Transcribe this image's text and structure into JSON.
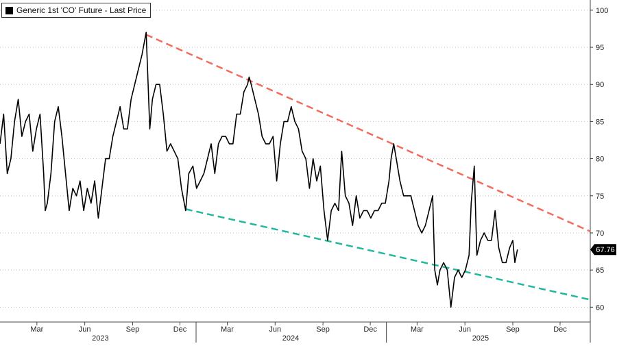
{
  "chart_data": {
    "type": "line",
    "legend": {
      "label": "Generic 1st 'CO' Future - Last Price",
      "placement": "top-left"
    },
    "last_value_label": "67.76",
    "y_axis": {
      "range": [
        58,
        101
      ],
      "ticks": [
        60,
        65,
        70,
        75,
        80,
        85,
        90,
        95,
        100
      ],
      "side": "right"
    },
    "x_axis": {
      "range": [
        "2022-12-20",
        "2026-01-28"
      ],
      "month_ticks": [
        {
          "label": "Mar",
          "date": "2023-03-01"
        },
        {
          "label": "Jun",
          "date": "2023-06-01"
        },
        {
          "label": "Sep",
          "date": "2023-09-01"
        },
        {
          "label": "Dec",
          "date": "2023-12-01"
        },
        {
          "label": "Mar",
          "date": "2024-03-01"
        },
        {
          "label": "Jun",
          "date": "2024-06-01"
        },
        {
          "label": "Sep",
          "date": "2024-09-01"
        },
        {
          "label": "Dec",
          "date": "2024-12-01"
        },
        {
          "label": "Mar",
          "date": "2025-03-01"
        },
        {
          "label": "Jun",
          "date": "2025-06-01"
        },
        {
          "label": "Sep",
          "date": "2025-09-01"
        },
        {
          "label": "Dec",
          "date": "2025-12-01"
        }
      ],
      "year_labels": [
        {
          "label": "2023",
          "date": "2023-07-01"
        },
        {
          "label": "2024",
          "date": "2024-07-01"
        },
        {
          "label": "2025",
          "date": "2025-07-01"
        }
      ],
      "year_separators": [
        "2024-01-01",
        "2025-01-01"
      ]
    },
    "grid": "horizontal dotted",
    "series": [
      {
        "color": "#000000",
        "points": [
          [
            "2022-12-20",
            82
          ],
          [
            "2022-12-27",
            86
          ],
          [
            "2023-01-03",
            78
          ],
          [
            "2023-01-10",
            80
          ],
          [
            "2023-01-17",
            85
          ],
          [
            "2023-01-24",
            88
          ],
          [
            "2023-01-31",
            83
          ],
          [
            "2023-02-07",
            85
          ],
          [
            "2023-02-14",
            86
          ],
          [
            "2023-02-21",
            81
          ],
          [
            "2023-02-28",
            84
          ],
          [
            "2023-03-07",
            86
          ],
          [
            "2023-03-14",
            78
          ],
          [
            "2023-03-17",
            73
          ],
          [
            "2023-03-21",
            74
          ],
          [
            "2023-03-28",
            78
          ],
          [
            "2023-04-04",
            85
          ],
          [
            "2023-04-11",
            87
          ],
          [
            "2023-04-18",
            83
          ],
          [
            "2023-04-25",
            78
          ],
          [
            "2023-05-02",
            73
          ],
          [
            "2023-05-09",
            76
          ],
          [
            "2023-05-16",
            75
          ],
          [
            "2023-05-23",
            77
          ],
          [
            "2023-05-30",
            73
          ],
          [
            "2023-06-06",
            76
          ],
          [
            "2023-06-13",
            74
          ],
          [
            "2023-06-20",
            77
          ],
          [
            "2023-06-27",
            72
          ],
          [
            "2023-07-04",
            76
          ],
          [
            "2023-07-11",
            80
          ],
          [
            "2023-07-18",
            80
          ],
          [
            "2023-07-25",
            83
          ],
          [
            "2023-08-01",
            85
          ],
          [
            "2023-08-08",
            87
          ],
          [
            "2023-08-15",
            84
          ],
          [
            "2023-08-22",
            84
          ],
          [
            "2023-08-29",
            88
          ],
          [
            "2023-09-05",
            90
          ],
          [
            "2023-09-12",
            92
          ],
          [
            "2023-09-19",
            94
          ],
          [
            "2023-09-27",
            97
          ],
          [
            "2023-10-04",
            84
          ],
          [
            "2023-10-09",
            88
          ],
          [
            "2023-10-16",
            90
          ],
          [
            "2023-10-23",
            90
          ],
          [
            "2023-10-30",
            86
          ],
          [
            "2023-11-06",
            81
          ],
          [
            "2023-11-13",
            82
          ],
          [
            "2023-11-20",
            81
          ],
          [
            "2023-11-27",
            80
          ],
          [
            "2023-12-04",
            76
          ],
          [
            "2023-12-12",
            73
          ],
          [
            "2023-12-18",
            78
          ],
          [
            "2023-12-26",
            79
          ],
          [
            "2024-01-02",
            76
          ],
          [
            "2024-01-09",
            77
          ],
          [
            "2024-01-16",
            78
          ],
          [
            "2024-01-23",
            80
          ],
          [
            "2024-01-30",
            82
          ],
          [
            "2024-02-06",
            78
          ],
          [
            "2024-02-13",
            82
          ],
          [
            "2024-02-20",
            83
          ],
          [
            "2024-02-27",
            83
          ],
          [
            "2024-03-05",
            82
          ],
          [
            "2024-03-12",
            82
          ],
          [
            "2024-03-19",
            86
          ],
          [
            "2024-03-26",
            86
          ],
          [
            "2024-04-02",
            89
          ],
          [
            "2024-04-09",
            90
          ],
          [
            "2024-04-12",
            91
          ],
          [
            "2024-04-16",
            90
          ],
          [
            "2024-04-23",
            88
          ],
          [
            "2024-04-30",
            86
          ],
          [
            "2024-05-07",
            83
          ],
          [
            "2024-05-14",
            82
          ],
          [
            "2024-05-21",
            82
          ],
          [
            "2024-05-28",
            83
          ],
          [
            "2024-06-04",
            77
          ],
          [
            "2024-06-11",
            82
          ],
          [
            "2024-06-18",
            85
          ],
          [
            "2024-06-25",
            85
          ],
          [
            "2024-07-02",
            87
          ],
          [
            "2024-07-09",
            85
          ],
          [
            "2024-07-16",
            84
          ],
          [
            "2024-07-23",
            81
          ],
          [
            "2024-07-30",
            80
          ],
          [
            "2024-08-06",
            76
          ],
          [
            "2024-08-13",
            80
          ],
          [
            "2024-08-20",
            77
          ],
          [
            "2024-08-27",
            79
          ],
          [
            "2024-09-03",
            73
          ],
          [
            "2024-09-10",
            69
          ],
          [
            "2024-09-17",
            73
          ],
          [
            "2024-09-24",
            74
          ],
          [
            "2024-10-01",
            73
          ],
          [
            "2024-10-07",
            81
          ],
          [
            "2024-10-14",
            75
          ],
          [
            "2024-10-21",
            74
          ],
          [
            "2024-10-28",
            71
          ],
          [
            "2024-11-04",
            75
          ],
          [
            "2024-11-11",
            72
          ],
          [
            "2024-11-18",
            73
          ],
          [
            "2024-11-25",
            73
          ],
          [
            "2024-12-02",
            72
          ],
          [
            "2024-12-09",
            73
          ],
          [
            "2024-12-16",
            73
          ],
          [
            "2024-12-23",
            74
          ],
          [
            "2024-12-30",
            74
          ],
          [
            "2025-01-06",
            77
          ],
          [
            "2025-01-10",
            80
          ],
          [
            "2025-01-15",
            82
          ],
          [
            "2025-01-20",
            80
          ],
          [
            "2025-01-27",
            77
          ],
          [
            "2025-02-03",
            75
          ],
          [
            "2025-02-10",
            75
          ],
          [
            "2025-02-17",
            75
          ],
          [
            "2025-02-24",
            73
          ],
          [
            "2025-03-03",
            71
          ],
          [
            "2025-03-10",
            70
          ],
          [
            "2025-03-17",
            71
          ],
          [
            "2025-03-24",
            73
          ],
          [
            "2025-03-31",
            75
          ],
          [
            "2025-04-04",
            65
          ],
          [
            "2025-04-09",
            63
          ],
          [
            "2025-04-14",
            65
          ],
          [
            "2025-04-21",
            66
          ],
          [
            "2025-04-28",
            65
          ],
          [
            "2025-05-05",
            60
          ],
          [
            "2025-05-12",
            64
          ],
          [
            "2025-05-19",
            65
          ],
          [
            "2025-05-26",
            64
          ],
          [
            "2025-06-02",
            65
          ],
          [
            "2025-06-09",
            67
          ],
          [
            "2025-06-13",
            74
          ],
          [
            "2025-06-19",
            79
          ],
          [
            "2025-06-24",
            67
          ],
          [
            "2025-07-01",
            69
          ],
          [
            "2025-07-08",
            70
          ],
          [
            "2025-07-15",
            69
          ],
          [
            "2025-07-22",
            69
          ],
          [
            "2025-07-29",
            73
          ],
          [
            "2025-08-05",
            68
          ],
          [
            "2025-08-12",
            66
          ],
          [
            "2025-08-19",
            66
          ],
          [
            "2025-08-26",
            68
          ],
          [
            "2025-09-01",
            69
          ],
          [
            "2025-09-05",
            66
          ],
          [
            "2025-09-10",
            67.76
          ]
        ]
      }
    ],
    "trendlines": [
      {
        "color": "#f26b5b",
        "style": "dashed",
        "from": [
          "2023-09-27",
          96.7
        ],
        "to": [
          "2026-01-28",
          70.2
        ]
      },
      {
        "color": "#22b8a0",
        "style": "dashed",
        "from": [
          "2023-12-12",
          73.2
        ],
        "to": [
          "2026-01-28",
          61.0
        ]
      }
    ]
  }
}
